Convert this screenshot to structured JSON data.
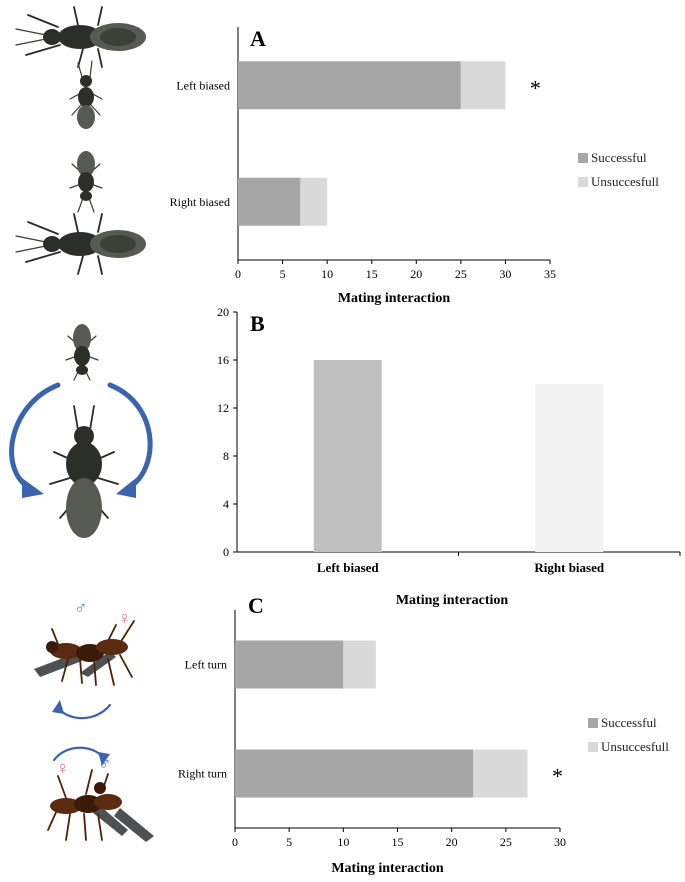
{
  "chart_data": [
    {
      "panel": "A",
      "type": "bar",
      "orientation": "horizontal",
      "stacked": true,
      "categories": [
        "Left biased",
        "Right biased"
      ],
      "series": [
        {
          "name": "Successful",
          "values": [
            25,
            7
          ],
          "color": "#a6a6a6"
        },
        {
          "name": "Unsuccesfull",
          "values": [
            5,
            3
          ],
          "color": "#d9d9d9"
        }
      ],
      "xlabel": "Mating interaction",
      "xlim": [
        0,
        35
      ],
      "xticks": [
        0,
        5,
        10,
        15,
        20,
        25,
        30,
        35
      ],
      "legend": "right",
      "annotations": [
        {
          "category": "Left biased",
          "text": "*"
        }
      ]
    },
    {
      "panel": "B",
      "type": "bar",
      "orientation": "vertical",
      "categories": [
        "Left biased",
        "Right biased"
      ],
      "values": [
        16,
        14
      ],
      "colors": [
        "#bfbfbf",
        "#f2f2f2"
      ],
      "ylim": [
        0,
        20
      ],
      "yticks": [
        0,
        4,
        8,
        12,
        16,
        20
      ],
      "xlabel": "Mating interaction"
    },
    {
      "panel": "C",
      "type": "bar",
      "orientation": "horizontal",
      "stacked": true,
      "categories": [
        "Left turn",
        "Right turn"
      ],
      "series": [
        {
          "name": "Successful",
          "values": [
            10,
            22
          ],
          "color": "#a6a6a6"
        },
        {
          "name": "Unsuccesfull",
          "values": [
            3,
            5
          ],
          "color": "#d9d9d9"
        }
      ],
      "xlabel": "Mating interaction",
      "xlim": [
        0,
        30
      ],
      "xticks": [
        0,
        5,
        10,
        15,
        20,
        25,
        30
      ],
      "legend": "right",
      "annotations": [
        {
          "category": "Right turn",
          "text": "*"
        }
      ]
    }
  ],
  "symbols": {
    "male": "♂",
    "female": "♀",
    "male_color": "#4a90c8",
    "female_color": "#e0708a"
  },
  "icons": [
    "wasp-photo",
    "rotation-arrow-icon"
  ]
}
